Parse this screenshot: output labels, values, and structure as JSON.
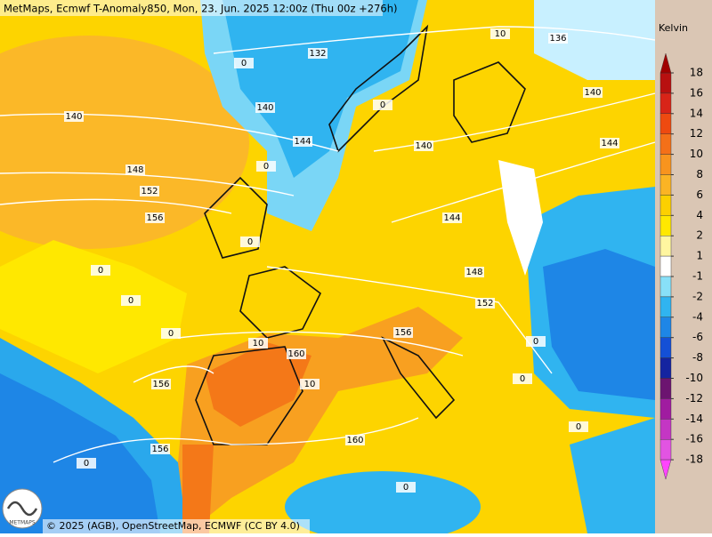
{
  "header": {
    "title": "MetMaps, Ecmwf T-Anomaly850, Mon, 23. Jun. 2025 12:00z (Thu 00z +276h)"
  },
  "footer": {
    "credit": "© 2025 (AGB), OpenStreetMap, ECMWF (CC BY 4.0)",
    "logo": "METMAPS"
  },
  "legend": {
    "unit": "Kelvin",
    "ticks": [
      18,
      16,
      14,
      12,
      10,
      8,
      6,
      4,
      2,
      1,
      -1,
      -2,
      -4,
      -6,
      -8,
      -10,
      -12,
      -14,
      -16,
      -18
    ],
    "colors": [
      "#b81010",
      "#d82418",
      "#ee4a10",
      "#f47018",
      "#f8941e",
      "#fbb424",
      "#fcd000",
      "#ffe800",
      "#fff6a0",
      "#ffffff",
      "#88e0f8",
      "#30b4f0",
      "#1e86e6",
      "#1450d6",
      "#1424a0",
      "#6c1470",
      "#a01ca0",
      "#c436c4",
      "#e254e2"
    ],
    "over_color": "#a00000",
    "under_color": "#ff44ff"
  },
  "map": {
    "contour_labels": [
      140,
      148,
      152,
      156,
      132,
      140,
      144,
      140,
      144,
      148,
      152,
      156,
      160,
      10,
      10,
      156,
      156,
      160,
      136,
      140,
      144,
      0,
      0,
      0,
      0,
      0,
      0,
      0,
      0,
      0,
      0,
      0,
      0,
      10
    ]
  }
}
